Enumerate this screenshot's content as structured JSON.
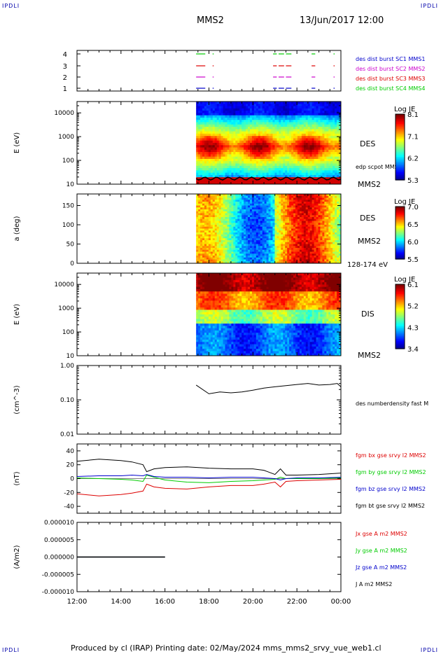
{
  "corners": {
    "tl": "IPDLI",
    "tr": "IPDLI",
    "bl": "IPDLI",
    "br": "IPDLI"
  },
  "header": {
    "mission": "MMS2",
    "date": "13/Jun/2017 12:00"
  },
  "footer": {
    "text": "Produced by cl (IRAP)   Printing date: 02/May/2024   mms_mms2_srvy_vue_web1.cl"
  },
  "colors": {
    "red": "#dd0000",
    "green": "#00cc00",
    "blue": "#0000cc",
    "magenta": "#cc00cc",
    "black": "#000000"
  },
  "chart_data": [
    {
      "type": "line",
      "name": "burst-flags",
      "xlim": [
        "12:00",
        "00:00"
      ],
      "yticks": [
        "4",
        "3",
        "2",
        "1"
      ],
      "legend": [
        {
          "label": "des dist burst SC1 MMS1",
          "color": "#0000cc"
        },
        {
          "label": "des dist burst SC2 MMS2",
          "color": "#cc00cc"
        },
        {
          "label": "des dist burst SC3 MMS3",
          "color": "#dd0000"
        },
        {
          "label": "des dist burst SC4 MMS4",
          "color": "#00cc00"
        }
      ],
      "flag_intervals": [
        [
          "17:25",
          "17:50"
        ],
        [
          "18:10",
          "18:13"
        ],
        [
          "20:55",
          "21:05"
        ],
        [
          "21:10",
          "21:25"
        ],
        [
          "21:30",
          "21:45"
        ],
        [
          "22:40",
          "22:50"
        ],
        [
          "23:40",
          "23:43"
        ]
      ]
    },
    {
      "type": "heatmap",
      "name": "des-energy",
      "ylabel": "E (eV)",
      "yscale": "log",
      "ylim": [
        10,
        30000
      ],
      "yticks": [
        "10000",
        "1000",
        "100",
        "10"
      ],
      "label": "DES",
      "side_label": "MMS2",
      "overlay_label": "edp scpot MMS2",
      "colorbar": {
        "title": "Log JE",
        "ticks": [
          "8.1",
          "7.1",
          "6.2",
          "5.3"
        ]
      },
      "data_start": "17:25"
    },
    {
      "type": "heatmap",
      "name": "des-pitch",
      "ylabel": "a (deg)",
      "ylim": [
        0,
        180
      ],
      "yticks": [
        "150",
        "100",
        "50",
        "0"
      ],
      "label": "DES",
      "side_label": "MMS2",
      "energy_label": "128-174 eV",
      "colorbar": {
        "title": "Log JE",
        "ticks": [
          "7.0",
          "6.5",
          "6.0",
          "5.5"
        ]
      },
      "data_start": "17:25"
    },
    {
      "type": "heatmap",
      "name": "dis-energy",
      "ylabel": "E (eV)",
      "yscale": "log",
      "ylim": [
        10,
        30000
      ],
      "yticks": [
        "10000",
        "1000",
        "100",
        "10"
      ],
      "label": "DIS",
      "side_label": "MMS2",
      "colorbar": {
        "title": "Log JE",
        "ticks": [
          "6.1",
          "5.2",
          "4.3",
          "3.4"
        ]
      },
      "data_start": "17:25"
    },
    {
      "type": "line",
      "name": "density",
      "ylabel": "(cm^-3)",
      "yscale": "log",
      "ylim": [
        0.01,
        1.0
      ],
      "yticks": [
        "1.00",
        "0.10",
        "0.01"
      ],
      "legend": [
        {
          "label": "des numberdensity fast M",
          "color": "#000000"
        }
      ],
      "x": [
        "17:25",
        "18:00",
        "18:30",
        "19:00",
        "19:30",
        "20:00",
        "20:30",
        "21:00",
        "21:30",
        "22:00",
        "22:30",
        "23:00",
        "23:30",
        "23:50",
        "00:00"
      ],
      "values": [
        0.27,
        0.15,
        0.17,
        0.16,
        0.17,
        0.19,
        0.22,
        0.24,
        0.26,
        0.28,
        0.3,
        0.27,
        0.28,
        0.3,
        0.24
      ]
    },
    {
      "type": "line",
      "name": "magnetic-field",
      "ylabel": "(nT)",
      "ylim": [
        -50,
        50
      ],
      "yticks": [
        "40",
        "20",
        "0",
        "-20",
        "-40"
      ],
      "x": [
        "12:00",
        "13:00",
        "14:00",
        "14:30",
        "15:00",
        "15:10",
        "15:30",
        "16:00",
        "17:00",
        "18:00",
        "19:00",
        "20:00",
        "20:30",
        "21:00",
        "21:15",
        "21:30",
        "22:00",
        "23:00",
        "00:00"
      ],
      "series": [
        {
          "label": "fgm bx gse srvy l2 MMS2",
          "color": "#dd0000",
          "values": [
            -22,
            -25,
            -23,
            -21,
            -18,
            -8,
            -12,
            -14,
            -15,
            -12,
            -10,
            -10,
            -8,
            -5,
            -12,
            -4,
            -3,
            -2,
            -1
          ]
        },
        {
          "label": "fgm by gse srvy l2 MMS2",
          "color": "#00cc00",
          "values": [
            1,
            0,
            -1,
            -2,
            -4,
            5,
            2,
            -2,
            -5,
            -6,
            -4,
            -3,
            -2,
            -1,
            2,
            0,
            0,
            0,
            1
          ]
        },
        {
          "label": "fgm bz gse srvy l2 MMS2",
          "color": "#0000cc",
          "values": [
            3,
            4,
            4,
            5,
            4,
            6,
            3,
            2,
            2,
            1,
            2,
            2,
            1,
            0,
            -2,
            0,
            1,
            1,
            2
          ]
        },
        {
          "label": "fgm bt gse srvy l2 MMS2",
          "color": "#000000",
          "values": [
            25,
            28,
            26,
            24,
            20,
            10,
            14,
            16,
            17,
            15,
            14,
            14,
            12,
            6,
            14,
            5,
            5,
            6,
            8
          ]
        }
      ]
    },
    {
      "type": "line",
      "name": "current-density",
      "ylabel": "(A/m2)",
      "ylim": [
        -1e-05,
        1e-05
      ],
      "yticks": [
        "0.000010",
        "0.000005",
        "0.000000",
        "-0.000005",
        "-0.000010"
      ],
      "x": [
        "12:00",
        "16:00"
      ],
      "series": [
        {
          "label": "Jx gse A m2 MMS2",
          "color": "#dd0000",
          "values": [
            0,
            0
          ]
        },
        {
          "label": "Jy gse A m2 MMS2",
          "color": "#00cc00",
          "values": [
            0,
            0
          ]
        },
        {
          "label": "Jz gse A m2 MMS2",
          "color": "#0000cc",
          "values": [
            0,
            0
          ]
        },
        {
          "label": "J A m2 MMS2",
          "color": "#000000",
          "values": [
            0,
            0
          ]
        }
      ]
    }
  ],
  "xaxis": {
    "ticks": [
      "12:00",
      "14:00",
      "16:00",
      "18:00",
      "20:00",
      "22:00",
      "00:00"
    ]
  }
}
